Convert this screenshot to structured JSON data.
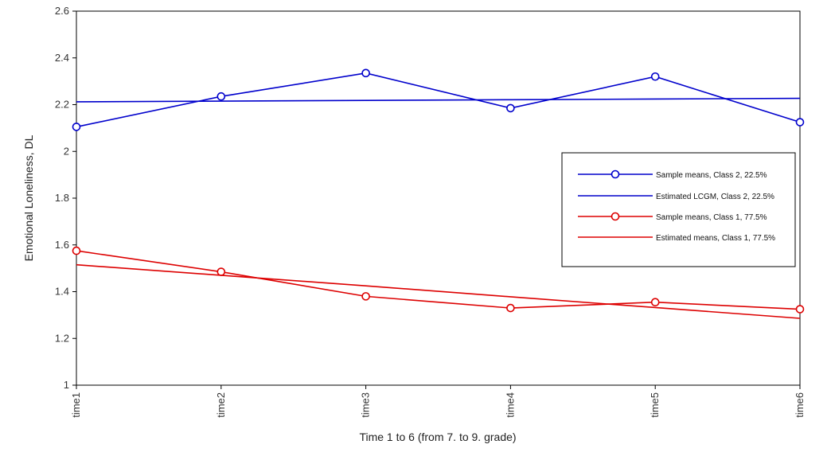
{
  "chart_data": {
    "type": "line",
    "title": "",
    "xlabel": "Time 1 to 6 (from 7. to 9. grade)",
    "ylabel": "Emotional Loneliness, DL",
    "categories": [
      "time1",
      "time2",
      "time3",
      "time4",
      "time5",
      "time6"
    ],
    "ylim": [
      1,
      2.6
    ],
    "yticks": [
      "1",
      "1.2",
      "1.4",
      "1.6",
      "1.8",
      "2",
      "2.2",
      "2.4",
      "2.6"
    ],
    "grid": false,
    "legend_position": "right",
    "series": [
      {
        "name": "Sample means, Class 2, 22.5%",
        "color": "#0000cc",
        "marker": "circle",
        "values": [
          2.105,
          2.235,
          2.335,
          2.185,
          2.32,
          2.125
        ]
      },
      {
        "name": "Estimated LCGM, Class 2, 22.5%",
        "color": "#0000cc",
        "marker": "none",
        "values": [
          2.212,
          2.215,
          2.218,
          2.221,
          2.224,
          2.227
        ]
      },
      {
        "name": "Sample means, Class 1, 77.5%",
        "color": "#dd0000",
        "marker": "circle",
        "values": [
          1.575,
          1.485,
          1.38,
          1.33,
          1.355,
          1.325
        ]
      },
      {
        "name": "Estimated means, Class 1, 77.5%",
        "color": "#dd0000",
        "marker": "none",
        "values": [
          1.515,
          1.47,
          1.425,
          1.378,
          1.332,
          1.286
        ]
      }
    ]
  }
}
